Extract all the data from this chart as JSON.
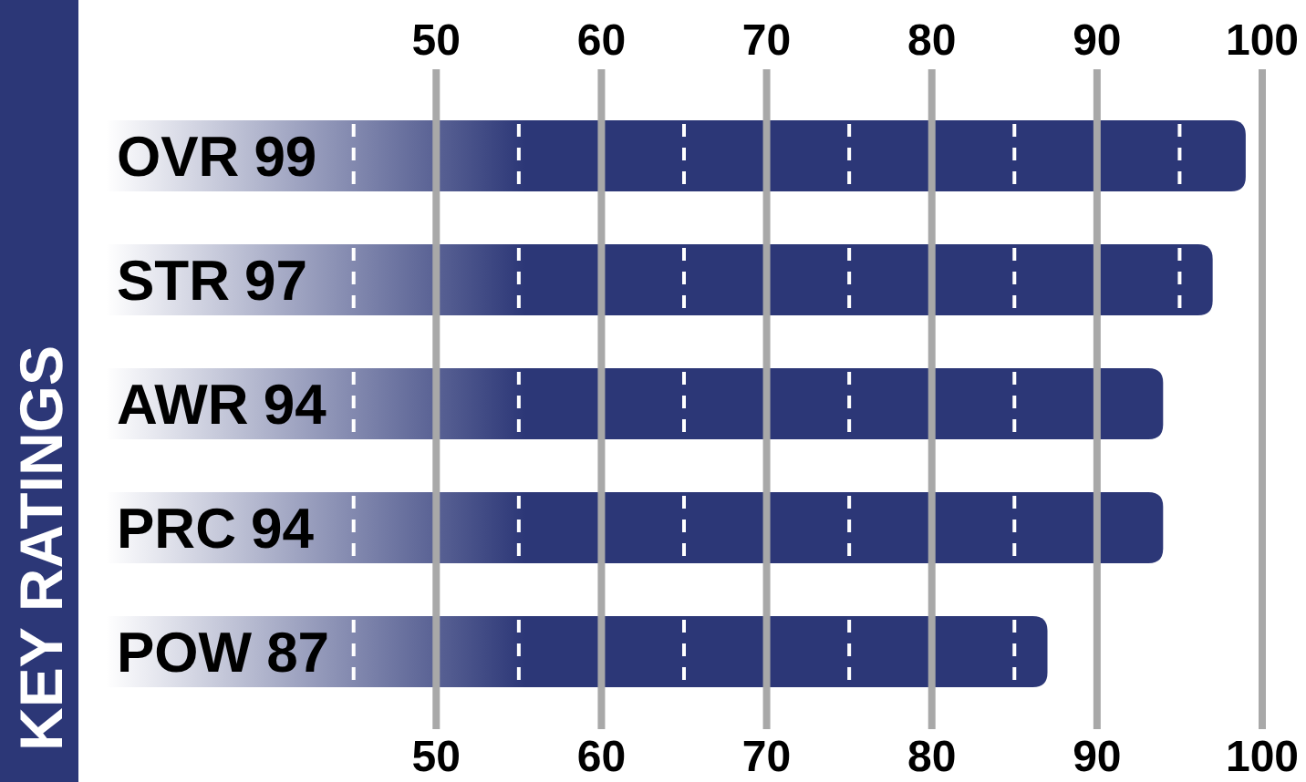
{
  "chart_data": {
    "type": "bar",
    "orientation": "horizontal",
    "title": "KEY RATINGS",
    "categories": [
      "OVR",
      "STR",
      "AWR",
      "PRC",
      "POW"
    ],
    "values": [
      99,
      97,
      94,
      94,
      87
    ],
    "color": "#2c3777",
    "data_labels": true,
    "xlim": [
      30,
      100
    ],
    "xticks": [
      50,
      60,
      70,
      80,
      90,
      100
    ],
    "x2lim": [
      30,
      100
    ],
    "x2ticks": [
      50,
      60,
      70,
      80,
      90,
      100
    ],
    "grid": "x"
  }
}
